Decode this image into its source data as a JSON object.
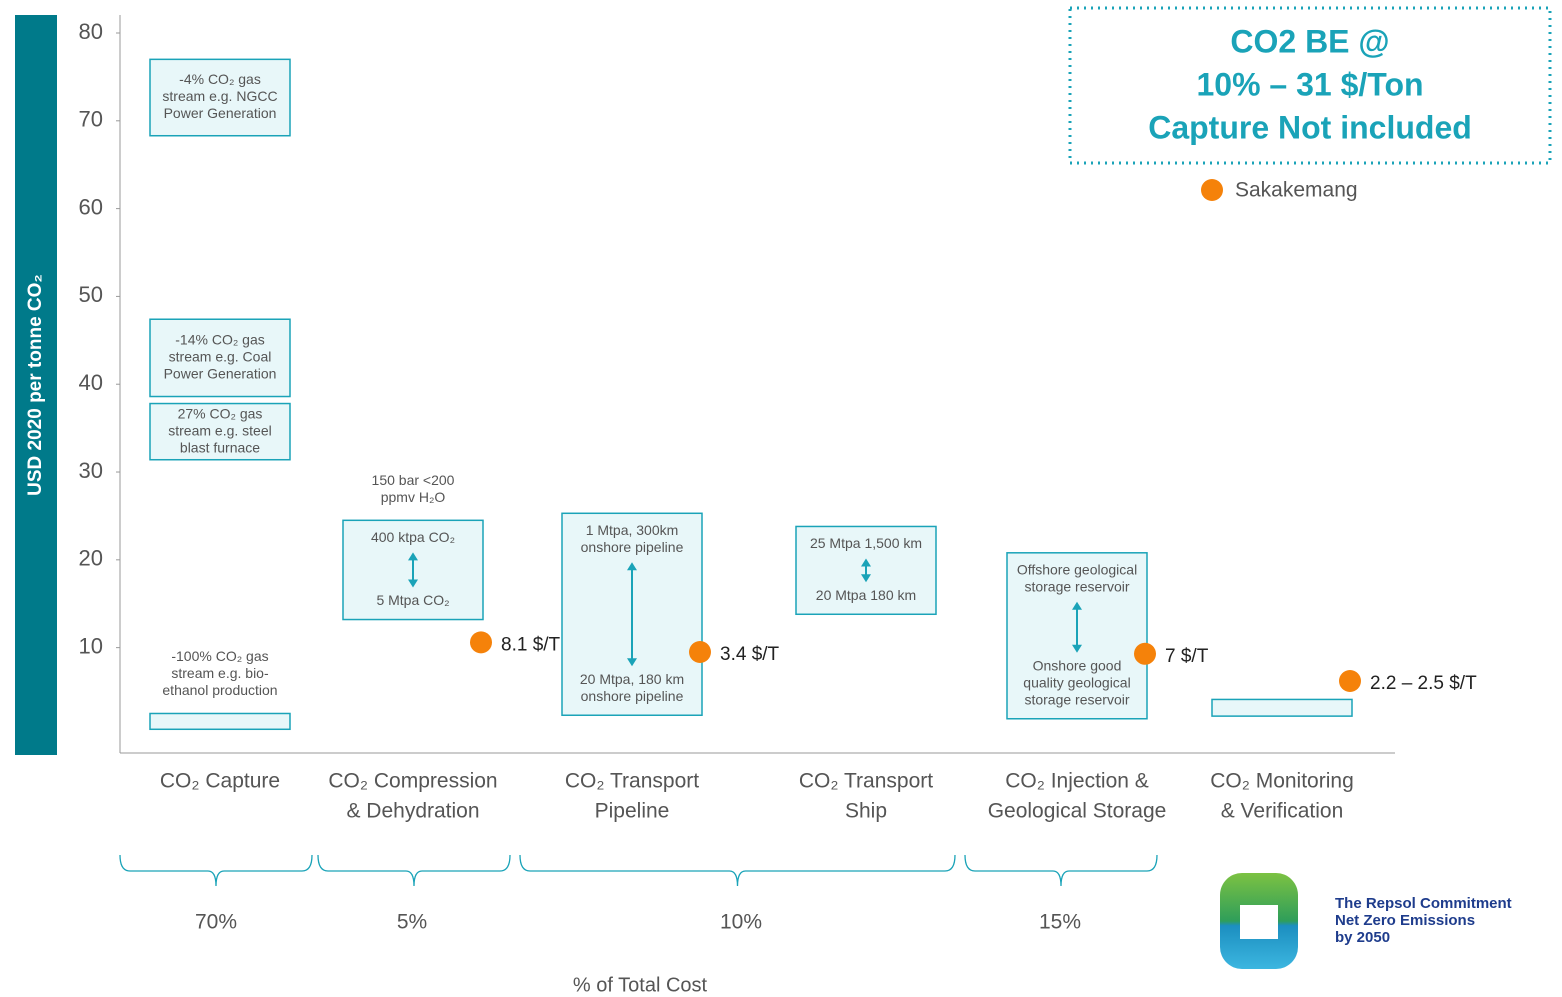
{
  "chart_data": {
    "type": "range-bar",
    "y_label": "USD 2020 per tonne CO₂",
    "x_label": "% of Total Cost",
    "ylim": [
      -2,
      80
    ],
    "yticks": [
      10,
      20,
      30,
      40,
      50,
      60,
      70,
      80
    ],
    "categories": [
      [
        "CO₂ Capture"
      ],
      [
        "CO₂ Compression",
        "& Dehydration"
      ],
      [
        "CO₂ Transport",
        "Pipeline"
      ],
      [
        "CO₂ Transport",
        "Ship"
      ],
      [
        "CO₂ Injection &",
        "Geological Storage"
      ],
      [
        "CO₂ Monitoring",
        "& Verification"
      ]
    ],
    "box_color": "#e8f7f9",
    "box_stroke": "#1aa3b8",
    "boxes": [
      [
        {
          "low": 68.3,
          "high": 77,
          "text": [
            "-4% CO₂ gas",
            "stream e.g. NGCC",
            "Power Generation"
          ]
        },
        {
          "low": 38.6,
          "high": 47.4,
          "text": [
            "-14% CO₂ gas",
            "stream e.g. Coal",
            "Power Generation"
          ]
        },
        {
          "low": 31.4,
          "high": 37.8,
          "text": [
            "27% CO₂ gas",
            "stream e.g. steel",
            "blast furnace"
          ]
        },
        {
          "low": 0.7,
          "high": 2.5,
          "above": [
            "-100% CO₂ gas",
            "stream e.g. bio-",
            "ethanol production"
          ]
        }
      ],
      [
        {
          "low": 13.2,
          "high": 24.5,
          "above": [
            "150 bar <200",
            "ppmv H₂O"
          ],
          "top": [
            "400 ktpa CO₂"
          ],
          "bottom": [
            "5 Mtpa CO₂"
          ]
        }
      ],
      [
        {
          "low": 2.3,
          "high": 25.3,
          "top": [
            "1 Mtpa, 300km",
            "onshore pipeline"
          ],
          "bottom": [
            "20 Mtpa, 180 km",
            "onshore pipeline"
          ]
        }
      ],
      [
        {
          "low": 13.8,
          "high": 23.8,
          "top": [
            "25 Mtpa 1,500 km"
          ],
          "bottom": [
            "20 Mtpa 180 km"
          ]
        }
      ],
      [
        {
          "low": 1.9,
          "high": 20.8,
          "top": [
            "Offshore geological",
            "storage reservoir"
          ],
          "bottom": [
            "Onshore good",
            "quality geological",
            "storage reservoir"
          ]
        }
      ],
      [
        {
          "low": 2.2,
          "high": 4.1
        }
      ]
    ],
    "series": [
      {
        "name": "Sakakemang",
        "color": "#f5820a",
        "values": [
          null,
          10.6,
          9.5,
          null,
          9.3,
          6.2
        ],
        "annotations": [
          null,
          "8.1 $/T",
          "3.4 $/T",
          null,
          "7 $/T",
          "2.2 – 2.5 $/T"
        ]
      }
    ],
    "cost_share": {
      "values": [
        70,
        5,
        10,
        15
      ],
      "value_labels": [
        "70%",
        "5%",
        "10%",
        "15%"
      ]
    },
    "note": [
      "CO2 BE @",
      "10% – 31 $/Ton",
      "Capture Not included"
    ],
    "logo_text": [
      "The Repsol Commitment",
      "Net Zero Emissions",
      "by 2050"
    ]
  }
}
